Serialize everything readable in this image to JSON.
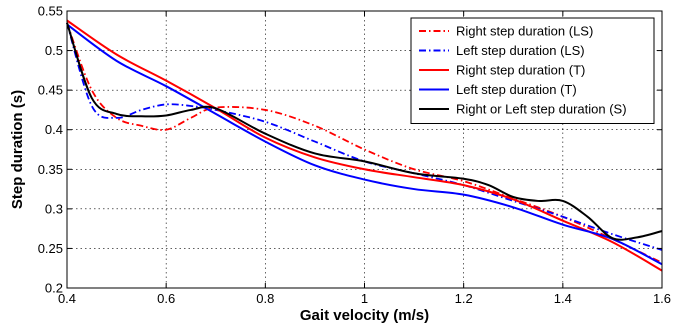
{
  "chart_data": {
    "type": "line",
    "xlabel": "Gait velocity (m/s)",
    "ylabel": "Step duration (s)",
    "xlim": [
      0.4,
      1.6
    ],
    "ylim": [
      0.2,
      0.55
    ],
    "xticks": [
      0.4,
      0.6,
      0.8,
      1.0,
      1.2,
      1.4,
      1.6
    ],
    "xtick_labels": [
      "0.4",
      "0.6",
      "0.8",
      "1",
      "1.2",
      "1.4",
      "1.6"
    ],
    "yticks": [
      0.2,
      0.25,
      0.3,
      0.35,
      0.4,
      0.45,
      0.5,
      0.55
    ],
    "ytick_labels": [
      "0.2",
      "0.25",
      "0.3",
      "0.35",
      "0.4",
      "0.45",
      "0.5",
      "0.55"
    ],
    "grid": true,
    "legend_position": "top-right",
    "series": [
      {
        "name": "Right step duration (LS)",
        "color": "#ff0000",
        "style": "dashdot",
        "x": [
          0.4,
          0.45,
          0.5,
          0.55,
          0.6,
          0.65,
          0.7,
          0.8,
          0.9,
          1.0,
          1.1,
          1.2,
          1.3,
          1.4,
          1.5,
          1.6
        ],
        "y": [
          0.535,
          0.45,
          0.415,
          0.405,
          0.4,
          0.415,
          0.428,
          0.425,
          0.405,
          0.375,
          0.35,
          0.335,
          0.313,
          0.29,
          0.262,
          0.232
        ]
      },
      {
        "name": "Left step duration (LS)",
        "color": "#0000ff",
        "style": "dashdot",
        "x": [
          0.4,
          0.45,
          0.5,
          0.55,
          0.6,
          0.65,
          0.7,
          0.8,
          0.9,
          1.0,
          1.1,
          1.2,
          1.3,
          1.4,
          1.5,
          1.6
        ],
        "y": [
          0.535,
          0.43,
          0.415,
          0.425,
          0.432,
          0.43,
          0.425,
          0.41,
          0.385,
          0.36,
          0.345,
          0.33,
          0.31,
          0.29,
          0.268,
          0.248
        ]
      },
      {
        "name": "Right step duration (T)",
        "color": "#ff0000",
        "style": "solid",
        "x": [
          0.4,
          0.5,
          0.6,
          0.7,
          0.8,
          0.9,
          1.0,
          1.1,
          1.2,
          1.3,
          1.4,
          1.5,
          1.6
        ],
        "y": [
          0.538,
          0.495,
          0.462,
          0.427,
          0.39,
          0.365,
          0.35,
          0.34,
          0.33,
          0.312,
          0.285,
          0.258,
          0.222
        ]
      },
      {
        "name": "Left step duration (T)",
        "color": "#0000ff",
        "style": "solid",
        "x": [
          0.4,
          0.5,
          0.6,
          0.7,
          0.8,
          0.9,
          1.0,
          1.1,
          1.2,
          1.3,
          1.4,
          1.5,
          1.6
        ],
        "y": [
          0.533,
          0.487,
          0.455,
          0.42,
          0.385,
          0.355,
          0.337,
          0.325,
          0.318,
          0.302,
          0.28,
          0.262,
          0.23
        ]
      },
      {
        "name": "Right or Left step duration (S)",
        "color": "#000000",
        "style": "solid",
        "x": [
          0.4,
          0.45,
          0.5,
          0.55,
          0.6,
          0.65,
          0.7,
          0.8,
          0.9,
          1.0,
          1.1,
          1.2,
          1.25,
          1.3,
          1.35,
          1.4,
          1.45,
          1.5,
          1.55,
          1.6
        ],
        "y": [
          0.535,
          0.44,
          0.42,
          0.417,
          0.418,
          0.425,
          0.427,
          0.395,
          0.37,
          0.36,
          0.345,
          0.338,
          0.33,
          0.315,
          0.31,
          0.31,
          0.29,
          0.263,
          0.264,
          0.272
        ]
      }
    ]
  }
}
